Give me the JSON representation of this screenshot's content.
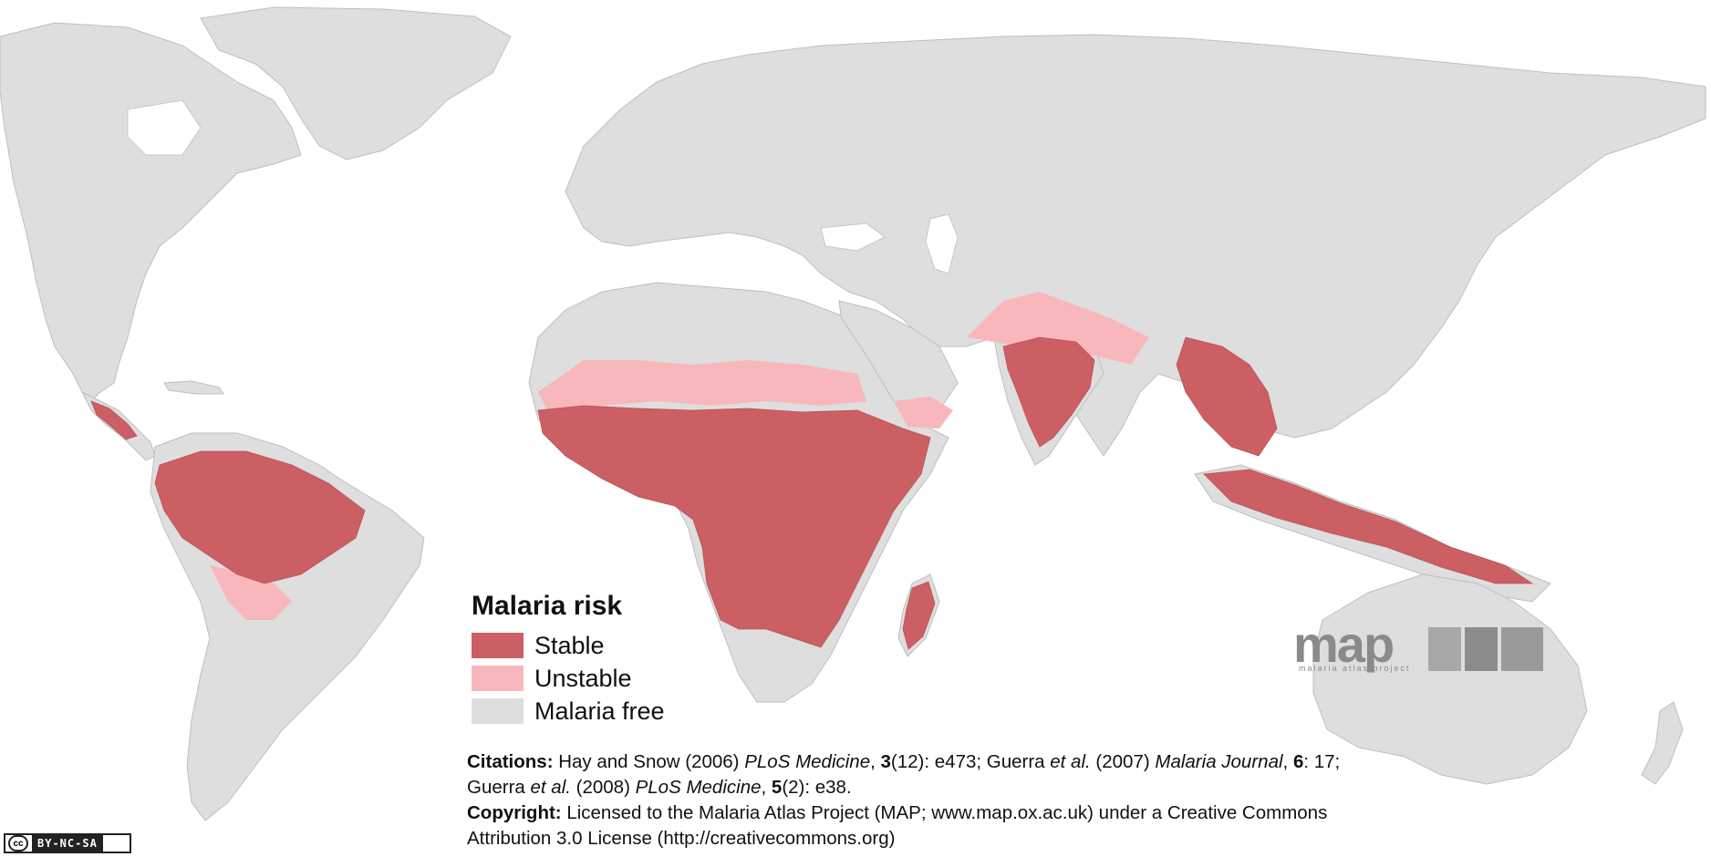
{
  "legend": {
    "title": "Malaria risk",
    "items": [
      {
        "label": "Stable",
        "color": "#cc5f64"
      },
      {
        "label": "Unstable",
        "color": "#f8b8bb"
      },
      {
        "label": "Malaria free",
        "color": "#dedede"
      }
    ]
  },
  "citations": {
    "line1_label": "Citations:",
    "line1_a": " Hay and Snow (2006) ",
    "line1_b": "PLoS Medicine",
    "line1_c": ", ",
    "line1_d": "3",
    "line1_e": "(12): e473; Guerra ",
    "line1_f": "et al.",
    "line1_g": " (2007) ",
    "line1_h": "Malaria Journal",
    "line1_i": ", ",
    "line1_j": "6",
    "line1_k": ": 17;",
    "line2_a": "Guerra ",
    "line2_b": "et al.",
    "line2_c": " (2008) ",
    "line2_d": "PLoS Medicine",
    "line2_e": ", ",
    "line2_f": "5",
    "line2_g": "(2): e38.",
    "copyright_label": "Copyright:",
    "copyright_text": " Licensed to the Malaria Atlas Project (MAP; www.map.ox.ac.uk) under a Creative Commons",
    "copyright_text2": "Attribution 3.0 License (http://creativecommons.org)"
  },
  "logo": {
    "text": "map",
    "subtitle": "malaria atlas project"
  },
  "license_badge": {
    "cc": "cc",
    "text": "BY-NC-SA"
  },
  "colors": {
    "land": "#dedede",
    "stable": "#cc5f64",
    "unstable": "#f8b8bb",
    "ocean": "#ffffff"
  }
}
